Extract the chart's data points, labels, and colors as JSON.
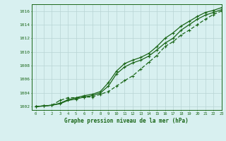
{
  "title": "Graphe pression niveau de la mer (hPa)",
  "bg_color": "#d8f0f0",
  "grid_color": "#b8d4d4",
  "line_color": "#1a6618",
  "xlim": [
    -0.5,
    23
  ],
  "ylim": [
    1001.5,
    1017.0
  ],
  "yticks": [
    1002,
    1004,
    1006,
    1008,
    1010,
    1012,
    1014,
    1016
  ],
  "xticks": [
    0,
    1,
    2,
    3,
    4,
    5,
    6,
    7,
    8,
    9,
    10,
    11,
    12,
    13,
    14,
    15,
    16,
    17,
    18,
    19,
    20,
    21,
    22,
    23
  ],
  "series_upper": [
    1002.0,
    1002.1,
    1002.2,
    1002.5,
    1003.0,
    1003.3,
    1003.6,
    1003.8,
    1004.2,
    1005.5,
    1007.2,
    1008.3,
    1008.8,
    1009.2,
    1009.8,
    1010.8,
    1012.0,
    1012.8,
    1013.8,
    1014.5,
    1015.2,
    1015.8,
    1016.1,
    1016.5
  ],
  "series_mid": [
    1002.0,
    1002.1,
    1002.2,
    1002.4,
    1002.9,
    1003.1,
    1003.4,
    1003.6,
    1004.0,
    1005.0,
    1006.8,
    1007.8,
    1008.4,
    1008.8,
    1009.4,
    1010.3,
    1011.3,
    1012.0,
    1013.2,
    1014.0,
    1014.8,
    1015.4,
    1015.8,
    1016.2
  ],
  "series_lower": [
    1002.0,
    1002.1,
    1002.2,
    1002.9,
    1003.3,
    1003.3,
    1003.4,
    1003.4,
    1003.8,
    1004.2,
    1005.0,
    1005.8,
    1006.5,
    1007.5,
    1008.5,
    1009.5,
    1010.8,
    1011.5,
    1012.5,
    1013.2,
    1014.0,
    1014.8,
    1015.5,
    1016.0
  ]
}
